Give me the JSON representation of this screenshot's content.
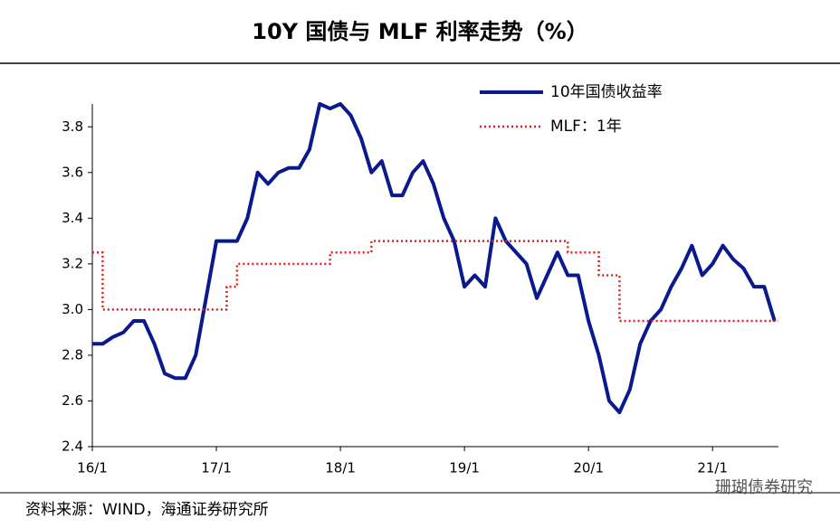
{
  "chart_data": {
    "type": "line",
    "title": "10Y 国债与 MLF 利率走势（%）",
    "source": "资料来源：WIND，海通证券研究所",
    "watermark": "珊瑚债券研究",
    "categories": [
      "16/1",
      null,
      null,
      null,
      null,
      null,
      null,
      null,
      null,
      null,
      null,
      null,
      "17/1",
      null,
      null,
      null,
      null,
      null,
      null,
      null,
      null,
      null,
      null,
      null,
      "18/1",
      null,
      null,
      null,
      null,
      null,
      null,
      null,
      null,
      null,
      null,
      null,
      "19/1",
      null,
      null,
      null,
      null,
      null,
      null,
      null,
      null,
      null,
      null,
      null,
      "20/1",
      null,
      null,
      null,
      null,
      null,
      null,
      null,
      null,
      null,
      null,
      null,
      "21/1",
      null,
      null,
      null,
      null,
      null,
      null
    ],
    "series": [
      {
        "name": "10年国债收益率",
        "color": "#0a1a8c",
        "style": "solid",
        "values": [
          2.85,
          2.85,
          2.88,
          2.9,
          2.95,
          2.95,
          2.85,
          2.72,
          2.7,
          2.7,
          2.8,
          3.05,
          3.3,
          3.3,
          3.3,
          3.4,
          3.6,
          3.55,
          3.6,
          3.62,
          3.62,
          3.7,
          3.9,
          3.88,
          3.9,
          3.85,
          3.75,
          3.6,
          3.65,
          3.5,
          3.5,
          3.6,
          3.65,
          3.55,
          3.4,
          3.3,
          3.1,
          3.15,
          3.1,
          3.4,
          3.3,
          3.25,
          3.2,
          3.05,
          3.15,
          3.25,
          3.15,
          3.15,
          2.95,
          2.8,
          2.6,
          2.55,
          2.65,
          2.85,
          2.95,
          3.0,
          3.1,
          3.18,
          3.28,
          3.15,
          3.2,
          3.28,
          3.22,
          3.18,
          3.1,
          3.1,
          2.95
        ]
      },
      {
        "name": "MLF：1年",
        "color": "#e0201b",
        "style": "dotted",
        "values": [
          3.25,
          3.0,
          3.0,
          3.0,
          3.0,
          3.0,
          3.0,
          3.0,
          3.0,
          3.0,
          3.0,
          3.0,
          3.0,
          3.1,
          3.2,
          3.2,
          3.2,
          3.2,
          3.2,
          3.2,
          3.2,
          3.2,
          3.2,
          3.25,
          3.25,
          3.25,
          3.25,
          3.3,
          3.3,
          3.3,
          3.3,
          3.3,
          3.3,
          3.3,
          3.3,
          3.3,
          3.3,
          3.3,
          3.3,
          3.3,
          3.3,
          3.3,
          3.3,
          3.3,
          3.3,
          3.3,
          3.25,
          3.25,
          3.25,
          3.15,
          3.15,
          2.95,
          2.95,
          2.95,
          2.95,
          2.95,
          2.95,
          2.95,
          2.95,
          2.95,
          2.95,
          2.95,
          2.95,
          2.95,
          2.95,
          2.95,
          2.95
        ]
      }
    ],
    "ylim": [
      2.4,
      3.9
    ],
    "yticks": [
      2.4,
      2.6,
      2.8,
      {
        "value": 3,
        "label": "3.0"
      },
      3.2,
      3.4,
      3.6,
      3.8
    ],
    "legend": "upper right"
  }
}
